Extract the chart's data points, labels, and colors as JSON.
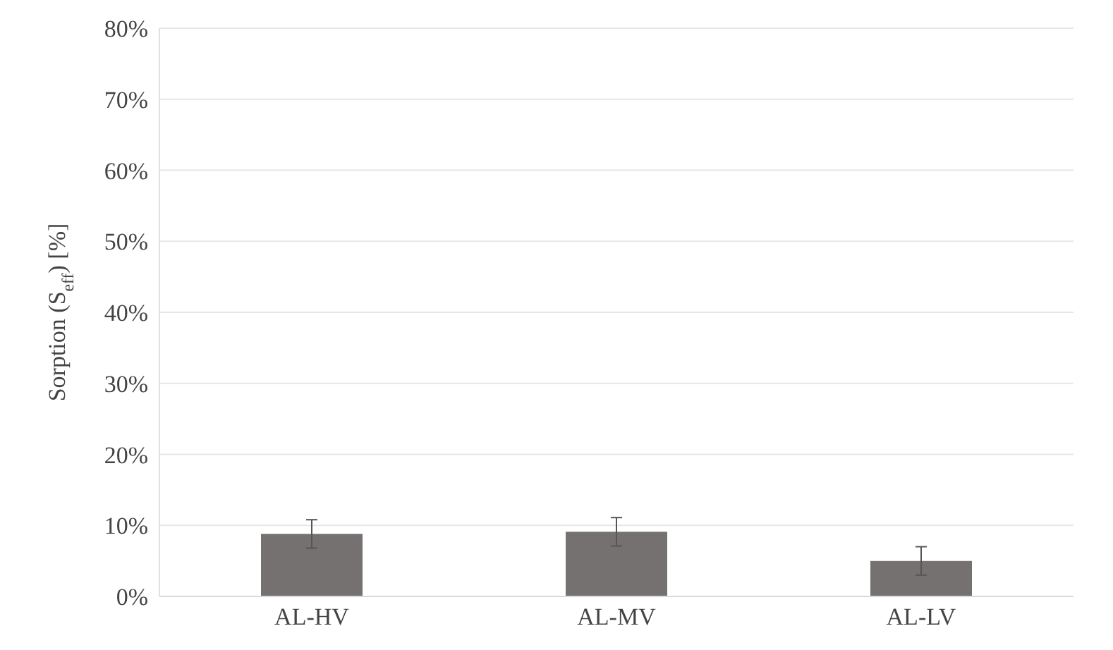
{
  "chart_data": {
    "type": "bar",
    "ylabel": "Sorption (S$_{eff}$) [%]",
    "categories": [
      "AL-HV",
      "AL-MV",
      "AL-LV"
    ],
    "values": [
      8.8,
      9.1,
      5.0
    ],
    "color": "#767171",
    "errors": [
      2,
      2,
      2
    ],
    "ylim": [
      0,
      80
    ],
    "yticks": [
      {
        "value": 0,
        "label": "0%"
      },
      {
        "value": 10,
        "label": "10%"
      },
      {
        "value": 20,
        "label": "20%"
      },
      {
        "value": 30,
        "label": "30%"
      },
      {
        "value": 40,
        "label": "40%"
      },
      {
        "value": 50,
        "label": "50%"
      },
      {
        "value": 60,
        "label": "60%"
      },
      {
        "value": 70,
        "label": "70%"
      },
      {
        "value": 80,
        "label": "80%"
      }
    ],
    "grid": "y"
  }
}
